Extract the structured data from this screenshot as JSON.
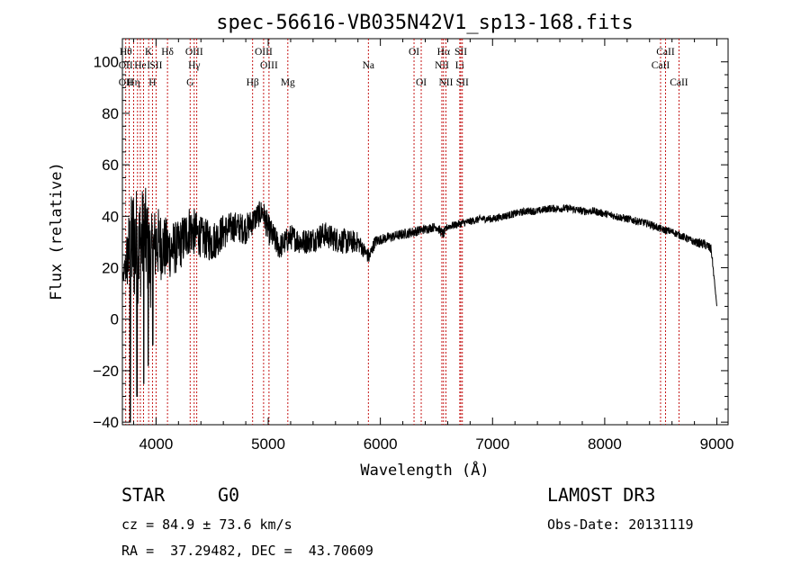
{
  "chart_data": {
    "type": "line",
    "title": "spec-56616-VB035N42V1_sp13-168.fits",
    "xlabel": "Wavelength (Å)",
    "ylabel": "Flux (relative)",
    "xlim": [
      3700,
      9100
    ],
    "ylim": [
      -41,
      109
    ],
    "xticks": [
      4000,
      5000,
      6000,
      7000,
      8000,
      9000
    ],
    "yticks": [
      -40,
      -20,
      0,
      20,
      40,
      60,
      80,
      100
    ],
    "xtick_labels": [
      "4000",
      "5000",
      "6000",
      "7000",
      "8000",
      "9000"
    ],
    "ytick_labels": [
      "−40",
      "−20",
      "0",
      "20",
      "40",
      "60",
      "80",
      "100"
    ],
    "series": [
      {
        "name": "flux",
        "x": [
          3700,
          3750,
          3800,
          3850,
          3900,
          3950,
          4000,
          4100,
          4200,
          4300,
          4400,
          4500,
          4600,
          4700,
          4800,
          4900,
          4950,
          5000,
          5100,
          5200,
          5300,
          5400,
          5500,
          5600,
          5700,
          5800,
          5850,
          5900,
          5950,
          6000,
          6100,
          6200,
          6300,
          6400,
          6500,
          6560,
          6600,
          6700,
          6800,
          6900,
          7000,
          7100,
          7200,
          7300,
          7400,
          7500,
          7600,
          7700,
          7800,
          7900,
          8000,
          8100,
          8200,
          8300,
          8400,
          8500,
          8600,
          8700,
          8800,
          8900,
          8950,
          9000
        ],
        "y": [
          15,
          25,
          30,
          28,
          33,
          22,
          30,
          27,
          28,
          35,
          32,
          30,
          34,
          36,
          35,
          40,
          42,
          35,
          28,
          32,
          30,
          31,
          33,
          31,
          30,
          30,
          27,
          24,
          30,
          31,
          32,
          33,
          34,
          35,
          36,
          33,
          36,
          37,
          38,
          39,
          39,
          40,
          41,
          42,
          42,
          43,
          43,
          43,
          42,
          42,
          41,
          40,
          39,
          38,
          37,
          35,
          34,
          32,
          30,
          29,
          27,
          5
        ],
        "noise": [
          0,
          15,
          25,
          22,
          20,
          18,
          15,
          12,
          10,
          10,
          8,
          8,
          7,
          6,
          6,
          5,
          5,
          6,
          5,
          5,
          5,
          5,
          5,
          5,
          5,
          4,
          3,
          3,
          2.5,
          2,
          2,
          2,
          2,
          1.8,
          1.8,
          2,
          1.5,
          1.5,
          1.5,
          1.5,
          1.5,
          1.5,
          1.5,
          1.5,
          1.5,
          1.5,
          1.5,
          1.5,
          1.5,
          1.5,
          1.5,
          1.5,
          1.5,
          1.5,
          1.5,
          1.5,
          1.5,
          1.5,
          1.5,
          2,
          2,
          0
        ],
        "minima": [
          {
            "x": 3770,
            "y": -40
          },
          {
            "x": 3830,
            "y": -30
          },
          {
            "x": 3890,
            "y": -25
          },
          {
            "x": 3930,
            "y": -18
          },
          {
            "x": 3970,
            "y": -10
          }
        ]
      }
    ],
    "line_markers": [
      {
        "x": 3730,
        "tiers": [
          {
            "text": "Hθ",
            "row": 0
          },
          {
            "text": "OII",
            "row": 1
          },
          {
            "text": "OII",
            "row": 2
          }
        ]
      },
      {
        "x": 3760,
        "tiers": [
          {
            "text": "",
            "row": 0
          }
        ]
      },
      {
        "x": 3800,
        "tiers": [
          {
            "text": "Hη",
            "row": 2
          }
        ]
      },
      {
        "x": 3835,
        "tiers": [
          {
            "text": "",
            "row": 0
          }
        ]
      },
      {
        "x": 3860,
        "tiers": [
          {
            "text": "He",
            "row": 1
          }
        ]
      },
      {
        "x": 3889,
        "tiers": [
          {
            "text": "",
            "row": 0
          }
        ]
      },
      {
        "x": 3934,
        "tiers": [
          {
            "text": "K",
            "row": 0
          },
          {
            "text": "I",
            "row": 1
          }
        ]
      },
      {
        "x": 3968,
        "tiers": [
          {
            "text": "H",
            "row": 2
          }
        ]
      },
      {
        "x": 4000,
        "tiers": [
          {
            "text": "SII",
            "row": 1
          }
        ]
      },
      {
        "x": 4102,
        "tiers": [
          {
            "text": "Hδ",
            "row": 0
          }
        ]
      },
      {
        "x": 4304,
        "tiers": [
          {
            "text": "G",
            "row": 2
          }
        ]
      },
      {
        "x": 4340,
        "tiers": [
          {
            "text": "OIII",
            "row": 0
          },
          {
            "text": "Hγ",
            "row": 1
          }
        ]
      },
      {
        "x": 4363,
        "tiers": [
          {
            "text": "",
            "row": 0
          }
        ]
      },
      {
        "x": 4861,
        "tiers": [
          {
            "text": "Hβ",
            "row": 2
          }
        ]
      },
      {
        "x": 4959,
        "tiers": [
          {
            "text": "OIII",
            "row": 0
          }
        ]
      },
      {
        "x": 5007,
        "tiers": [
          {
            "text": "OIII",
            "row": 1
          }
        ]
      },
      {
        "x": 5175,
        "tiers": [
          {
            "text": "Mg",
            "row": 2
          }
        ]
      },
      {
        "x": 5893,
        "tiers": [
          {
            "text": "Na",
            "row": 1
          }
        ]
      },
      {
        "x": 6300,
        "tiers": [
          {
            "text": "OI",
            "row": 0
          }
        ]
      },
      {
        "x": 6364,
        "tiers": [
          {
            "text": "OI",
            "row": 2
          }
        ]
      },
      {
        "x": 6548,
        "tiers": [
          {
            "text": "NII",
            "row": 1
          }
        ]
      },
      {
        "x": 6563,
        "tiers": [
          {
            "text": "Hα",
            "row": 0
          }
        ]
      },
      {
        "x": 6584,
        "tiers": [
          {
            "text": "NII",
            "row": 2
          }
        ]
      },
      {
        "x": 6708,
        "tiers": [
          {
            "text": "Li",
            "row": 1
          }
        ]
      },
      {
        "x": 6717,
        "tiers": [
          {
            "text": "SII",
            "row": 0
          }
        ]
      },
      {
        "x": 6731,
        "tiers": [
          {
            "text": "SII",
            "row": 2
          }
        ]
      },
      {
        "x": 8498,
        "tiers": [
          {
            "text": "CaII",
            "row": 1
          }
        ]
      },
      {
        "x": 8542,
        "tiers": [
          {
            "text": "CaII",
            "row": 0
          }
        ]
      },
      {
        "x": 8662,
        "tiers": [
          {
            "text": "CaII",
            "row": 2
          }
        ]
      }
    ]
  },
  "info": {
    "class": "STAR",
    "subclass": "G0",
    "survey": "LAMOST DR3",
    "velocity": "cz = 84.9 ± 73.6 km/s",
    "obs_date": "Obs-Date: 20131119",
    "coords": "RA =  37.29482, DEC =  43.70609"
  }
}
